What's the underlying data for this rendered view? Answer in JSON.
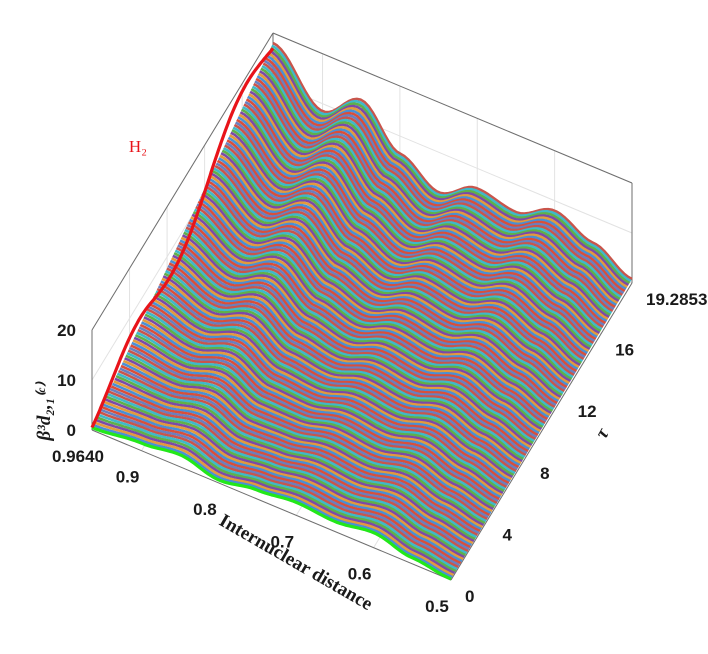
{
  "chart_data": {
    "type": "surface-3d",
    "legend": {
      "label": "H₂",
      "color": "#e8141a"
    },
    "axes": {
      "x": {
        "label": "Internuclear distance",
        "range": [
          0.5,
          0.964
        ],
        "ticks": [
          "0.5",
          "0.6",
          "0.7",
          "0.8",
          "0.9",
          "0.9640"
        ]
      },
      "y": {
        "label": "τ",
        "range": [
          0,
          19.2853
        ],
        "ticks": [
          "0",
          "4",
          "8",
          "12",
          "16",
          "19.2853"
        ]
      },
      "z": {
        "label": "β³d₂,₁⁽ᶜ⁾",
        "range": [
          0,
          20
        ],
        "ticks": [
          "0",
          "10",
          "20"
        ]
      }
    },
    "grid": true,
    "profile_tau0": {
      "x": [
        0.5,
        0.55,
        0.6,
        0.65,
        0.7,
        0.75,
        0.8,
        0.85,
        0.9,
        0.964
      ],
      "z": [
        0.2,
        1.2,
        3.0,
        2.0,
        2.6,
        1.8,
        0.6,
        2.4,
        1.5,
        0.5
      ]
    },
    "profile_tau_max": {
      "x": [
        0.5,
        0.55,
        0.6,
        0.65,
        0.7,
        0.75,
        0.8,
        0.85,
        0.9,
        0.964
      ],
      "z": [
        0.8,
        4.8,
        8.0,
        4.5,
        6.0,
        2.0,
        6.5,
        14.0,
        8.5,
        18.0
      ]
    },
    "edge_colors": {
      "tau0": "#22e81a",
      "x_max": "#e8141a"
    },
    "line_palette": [
      "#d94f3a",
      "#4a8fd4",
      "#e39a3c",
      "#7b4aa8",
      "#5fb04a",
      "#3fb8c9",
      "#c9554b",
      "#6a7fbf"
    ]
  }
}
